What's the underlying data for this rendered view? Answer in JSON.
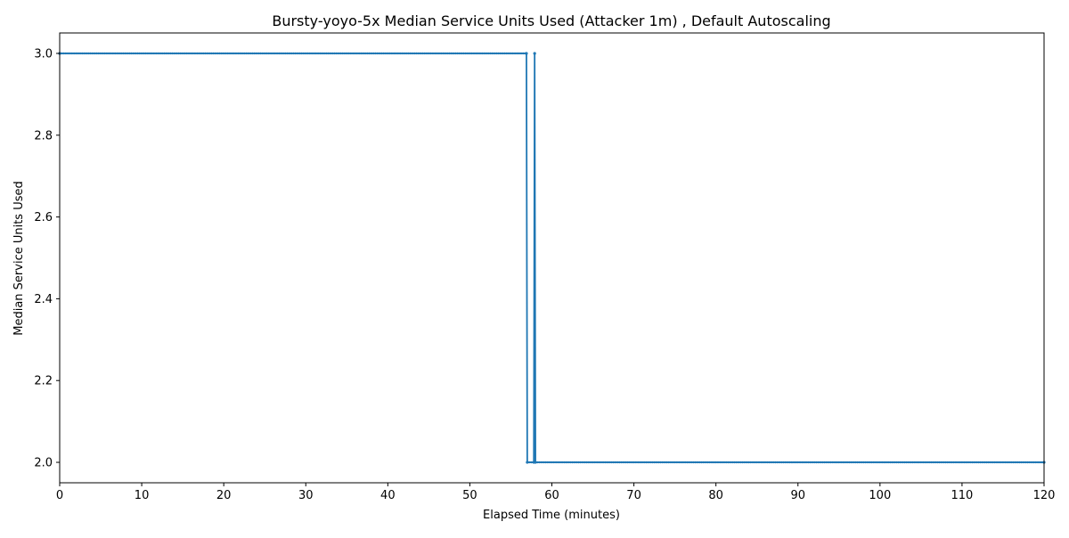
{
  "chart_data": {
    "type": "line",
    "title": "Bursty-yoyo-5x Median Service Units Used (Attacker 1m) , Default Autoscaling",
    "xlabel": "Elapsed Time (minutes)",
    "ylabel": "Median Service Units Used",
    "xlim": [
      0,
      120
    ],
    "ylim": [
      1.95,
      3.05
    ],
    "xticks": [
      0,
      10,
      20,
      30,
      40,
      50,
      60,
      70,
      80,
      90,
      100,
      110,
      120
    ],
    "xtick_labels": [
      "0",
      "10",
      "20",
      "30",
      "40",
      "50",
      "60",
      "70",
      "80",
      "90",
      "100",
      "110",
      "120"
    ],
    "yticks": [
      2.0,
      2.2,
      2.4,
      2.6,
      2.8,
      3.0
    ],
    "ytick_labels": [
      "2.0",
      "2.2",
      "2.4",
      "2.6",
      "2.8",
      "3.0"
    ],
    "grid": false,
    "legend": "none",
    "series": [
      {
        "color": "#1f77b4",
        "x": [
          0,
          56.9,
          57.0,
          57.8,
          57.9,
          58.0,
          120
        ],
        "y": [
          3.0,
          3.0,
          2.0,
          2.0,
          3.0,
          2.0,
          2.0
        ]
      }
    ]
  }
}
